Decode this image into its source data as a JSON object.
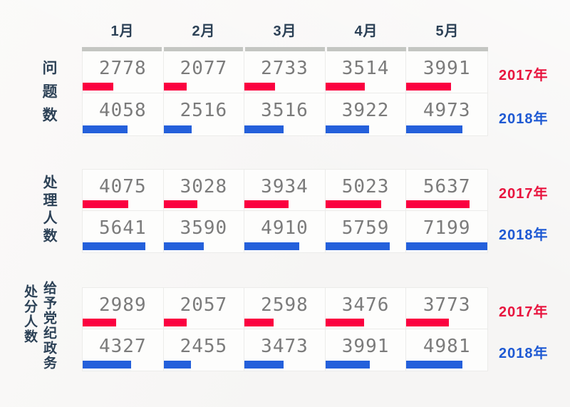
{
  "months": [
    "1月",
    "2月",
    "3月",
    "4月",
    "5月"
  ],
  "bar_scale": {
    "max": 7199
  },
  "colors": {
    "bar_2017": "#fb0140",
    "bar_2018": "#2460db",
    "legend_2017": "#e8143e",
    "legend_2018": "#1e59d3",
    "heading_ink": "#2c4156",
    "value_text": "#7b7b7b",
    "top_bar": "#c4c6c2",
    "cell_border": "#ececea",
    "cell_bg": "#fdfdfc",
    "page_bg": "#f6f5f4"
  },
  "chart_data": [
    {
      "type": "bar",
      "orientation": "horizontal",
      "title": "问题数",
      "categories": [
        "1月",
        "2月",
        "3月",
        "4月",
        "5月"
      ],
      "series": [
        {
          "name": "2017年",
          "color": "#fb0140",
          "values": [
            2778,
            2077,
            2733,
            3514,
            3991
          ]
        },
        {
          "name": "2018年",
          "color": "#2460db",
          "values": [
            4058,
            2516,
            3516,
            3922,
            4973
          ]
        }
      ],
      "value_range": [
        0,
        7199
      ],
      "value_labels": "shown above bars",
      "legend_position": "right",
      "grid": false
    },
    {
      "type": "bar",
      "orientation": "horizontal",
      "title": "处理人数",
      "categories": [
        "1月",
        "2月",
        "3月",
        "4月",
        "5月"
      ],
      "series": [
        {
          "name": "2017年",
          "color": "#fb0140",
          "values": [
            4075,
            3028,
            3934,
            5023,
            5637
          ]
        },
        {
          "name": "2018年",
          "color": "#2460db",
          "values": [
            5641,
            3590,
            4910,
            5759,
            7199
          ]
        }
      ],
      "value_range": [
        0,
        7199
      ],
      "value_labels": "shown above bars",
      "legend_position": "right",
      "grid": false
    },
    {
      "type": "bar",
      "orientation": "horizontal",
      "title": "处分人数",
      "title_note": "给予党纪政务",
      "categories": [
        "1月",
        "2月",
        "3月",
        "4月",
        "5月"
      ],
      "series": [
        {
          "name": "2017年",
          "color": "#fb0140",
          "values": [
            2989,
            2057,
            2598,
            3476,
            3773
          ]
        },
        {
          "name": "2018年",
          "color": "#2460db",
          "values": [
            4327,
            2455,
            3473,
            3991,
            4981
          ]
        }
      ],
      "value_range": [
        0,
        7199
      ],
      "value_labels": "shown above bars",
      "legend_position": "right",
      "grid": false
    }
  ]
}
